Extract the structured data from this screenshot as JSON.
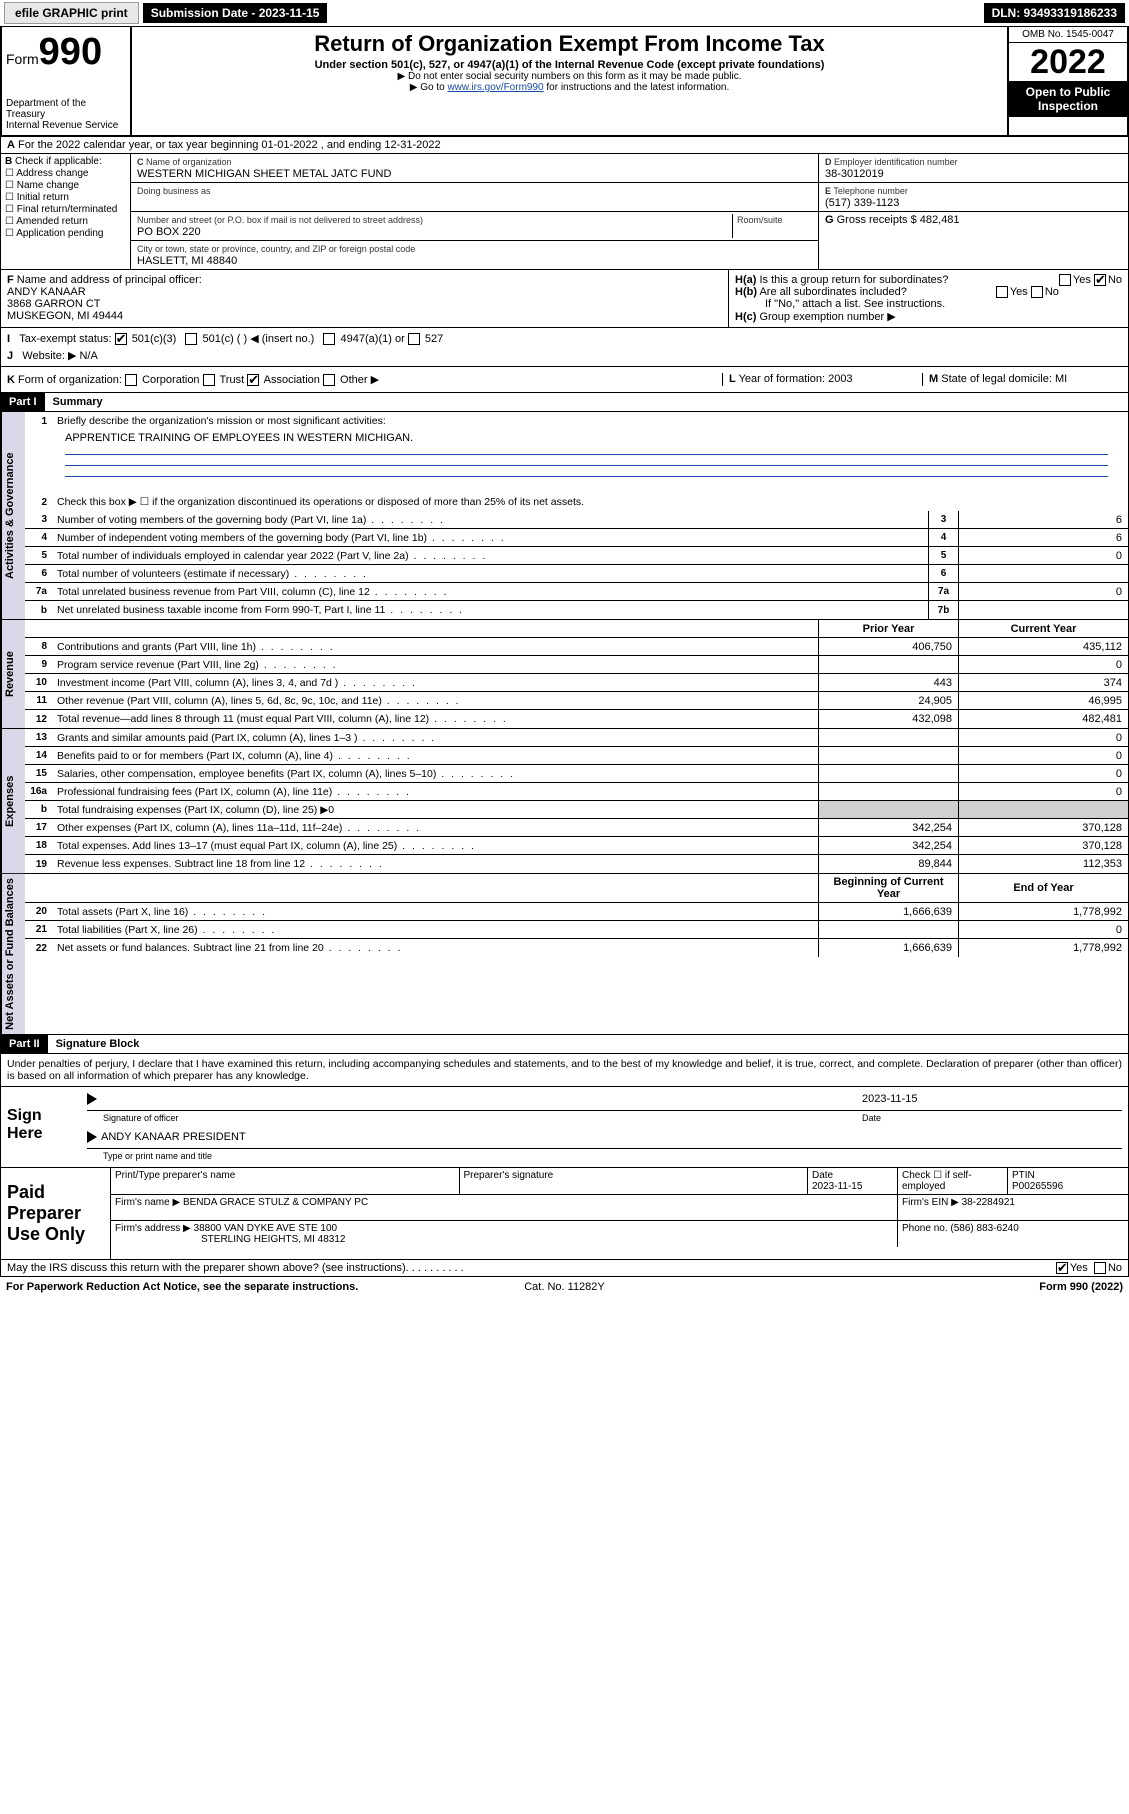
{
  "topbar": {
    "efile": "efile GRAPHIC print",
    "subdate_label": "Submission Date - 2023-11-15",
    "dln": "DLN: 93493319186233"
  },
  "header": {
    "form_label": "Form",
    "form_num": "990",
    "dept": "Department of the Treasury",
    "irs": "Internal Revenue Service",
    "title": "Return of Organization Exempt From Income Tax",
    "sub1": "Under section 501(c), 527, or 4947(a)(1) of the Internal Revenue Code (except private foundations)",
    "sub2": "▶ Do not enter social security numbers on this form as it may be made public.",
    "sub3": "▶ Go to www.irs.gov/Form990 for instructions and the latest information.",
    "omb": "OMB No. 1545-0047",
    "year": "2022",
    "open": "Open to Public Inspection"
  },
  "secA": "For the 2022 calendar year, or tax year beginning 01-01-2022   , and ending 12-31-2022",
  "boxB": {
    "label": "Check if applicable:",
    "opts": [
      "Address change",
      "Name change",
      "Initial return",
      "Final return/terminated",
      "Amended return",
      "Application pending"
    ]
  },
  "boxC": {
    "name_lbl": "Name of organization",
    "name": "WESTERN MICHIGAN SHEET METAL JATC FUND",
    "dba_lbl": "Doing business as",
    "dba": "",
    "addr_lbl": "Number and street (or P.O. box if mail is not delivered to street address)",
    "room_lbl": "Room/suite",
    "addr": "PO BOX 220",
    "city_lbl": "City or town, state or province, country, and ZIP or foreign postal code",
    "city": "HASLETT, MI  48840"
  },
  "boxD": {
    "lbl": "Employer identification number",
    "val": "38-3012019"
  },
  "boxE": {
    "lbl": "Telephone number",
    "val": "(517) 339-1123"
  },
  "boxG": {
    "lbl": "Gross receipts $",
    "val": "482,481"
  },
  "boxF": {
    "lbl": "Name and address of principal officer:",
    "name": "ANDY KANAAR",
    "addr": "3868 GARRON CT",
    "city": "MUSKEGON, MI  49444"
  },
  "boxH": {
    "a": "Is this a group return for subordinates?",
    "a_yes": "Yes",
    "a_no": "No",
    "b": "Are all subordinates included?",
    "b_note": "If \"No,\" attach a list. See instructions.",
    "c": "Group exemption number ▶"
  },
  "boxI": {
    "lbl": "Tax-exempt status:",
    "o1": "501(c)(3)",
    "o2": "501(c) (  ) ◀ (insert no.)",
    "o3": "4947(a)(1) or",
    "o4": "527"
  },
  "boxJ": {
    "lbl": "Website: ▶",
    "val": "N/A"
  },
  "boxK": {
    "lbl": "Form of organization:",
    "o1": "Corporation",
    "o2": "Trust",
    "o3": "Association",
    "o4": "Other ▶"
  },
  "boxL": {
    "lbl": "Year of formation:",
    "val": "2003"
  },
  "boxM": {
    "lbl": "State of legal domicile:",
    "val": "MI"
  },
  "part1": {
    "hdr": "Part I",
    "title": "Summary"
  },
  "summary": {
    "q1": "Briefly describe the organization's mission or most significant activities:",
    "q1a": "APPRENTICE TRAINING OF EMPLOYEES IN WESTERN MICHIGAN.",
    "q2": "Check this box ▶ ☐  if the organization discontinued its operations or disposed of more than 25% of its net assets.",
    "rows_gov": [
      {
        "n": "3",
        "d": "Number of voting members of the governing body (Part VI, line 1a)",
        "b": "3",
        "v": "6"
      },
      {
        "n": "4",
        "d": "Number of independent voting members of the governing body (Part VI, line 1b)",
        "b": "4",
        "v": "6"
      },
      {
        "n": "5",
        "d": "Total number of individuals employed in calendar year 2022 (Part V, line 2a)",
        "b": "5",
        "v": "0"
      },
      {
        "n": "6",
        "d": "Total number of volunteers (estimate if necessary)",
        "b": "6",
        "v": ""
      },
      {
        "n": "7a",
        "d": "Total unrelated business revenue from Part VIII, column (C), line 12",
        "b": "7a",
        "v": "0"
      },
      {
        "n": "b",
        "d": "Net unrelated business taxable income from Form 990-T, Part I, line 11",
        "b": "7b",
        "v": ""
      }
    ],
    "col_hdr": {
      "prior": "Prior Year",
      "curr": "Current Year"
    },
    "rows_rev": [
      {
        "n": "8",
        "d": "Contributions and grants (Part VIII, line 1h)",
        "p": "406,750",
        "c": "435,112"
      },
      {
        "n": "9",
        "d": "Program service revenue (Part VIII, line 2g)",
        "p": "",
        "c": "0"
      },
      {
        "n": "10",
        "d": "Investment income (Part VIII, column (A), lines 3, 4, and 7d )",
        "p": "443",
        "c": "374"
      },
      {
        "n": "11",
        "d": "Other revenue (Part VIII, column (A), lines 5, 6d, 8c, 9c, 10c, and 11e)",
        "p": "24,905",
        "c": "46,995"
      },
      {
        "n": "12",
        "d": "Total revenue—add lines 8 through 11 (must equal Part VIII, column (A), line 12)",
        "p": "432,098",
        "c": "482,481"
      }
    ],
    "rows_exp": [
      {
        "n": "13",
        "d": "Grants and similar amounts paid (Part IX, column (A), lines 1–3 )",
        "p": "",
        "c": "0"
      },
      {
        "n": "14",
        "d": "Benefits paid to or for members (Part IX, column (A), line 4)",
        "p": "",
        "c": "0"
      },
      {
        "n": "15",
        "d": "Salaries, other compensation, employee benefits (Part IX, column (A), lines 5–10)",
        "p": "",
        "c": "0"
      },
      {
        "n": "16a",
        "d": "Professional fundraising fees (Part IX, column (A), line 11e)",
        "p": "",
        "c": "0"
      },
      {
        "n": "b",
        "d": "Total fundraising expenses (Part IX, column (D), line 25) ▶0",
        "p": "—shade—",
        "c": "—shade—"
      },
      {
        "n": "17",
        "d": "Other expenses (Part IX, column (A), lines 11a–11d, 11f–24e)",
        "p": "342,254",
        "c": "370,128"
      },
      {
        "n": "18",
        "d": "Total expenses. Add lines 13–17 (must equal Part IX, column (A), line 25)",
        "p": "342,254",
        "c": "370,128"
      },
      {
        "n": "19",
        "d": "Revenue less expenses. Subtract line 18 from line 12",
        "p": "89,844",
        "c": "112,353"
      }
    ],
    "col_hdr2": {
      "beg": "Beginning of Current Year",
      "end": "End of Year"
    },
    "rows_net": [
      {
        "n": "20",
        "d": "Total assets (Part X, line 16)",
        "p": "1,666,639",
        "c": "1,778,992"
      },
      {
        "n": "21",
        "d": "Total liabilities (Part X, line 26)",
        "p": "",
        "c": "0"
      },
      {
        "n": "22",
        "d": "Net assets or fund balances. Subtract line 21 from line 20",
        "p": "1,666,639",
        "c": "1,778,992"
      }
    ],
    "tabs": {
      "gov": "Activities & Governance",
      "rev": "Revenue",
      "exp": "Expenses",
      "net": "Net Assets or Fund Balances"
    }
  },
  "part2": {
    "hdr": "Part II",
    "title": "Signature Block"
  },
  "sig": {
    "perjury": "Under penalties of perjury, I declare that I have examined this return, including accompanying schedules and statements, and to the best of my knowledge and belief, it is true, correct, and complete. Declaration of preparer (other than officer) is based on all information of which preparer has any knowledge.",
    "sign_here": "Sign Here",
    "sig_officer": "Signature of officer",
    "date_lbl": "Date",
    "date": "2023-11-15",
    "name": "ANDY KANAAR  PRESIDENT",
    "name_lbl": "Type or print name and title"
  },
  "prep": {
    "lbl": "Paid Preparer Use Only",
    "h1": "Print/Type preparer's name",
    "h2": "Preparer's signature",
    "h3": "Date",
    "h4": "Check ☐ if self-employed",
    "h5": "PTIN",
    "date": "2023-11-15",
    "ptin": "P00265596",
    "firm_lbl": "Firm's name  ▶",
    "firm": "BENDA GRACE STULZ & COMPANY PC",
    "ein_lbl": "Firm's EIN ▶",
    "ein": "38-2284921",
    "addr_lbl": "Firm's address ▶",
    "addr": "38800 VAN DYKE AVE STE 100",
    "addr2": "STERLING HEIGHTS, MI  48312",
    "phone_lbl": "Phone no.",
    "phone": "(586) 883-6240"
  },
  "footer": {
    "q": "May the IRS discuss this return with the preparer shown above? (see instructions)",
    "yes": "Yes",
    "no": "No",
    "paperwork": "For Paperwork Reduction Act Notice, see the separate instructions.",
    "cat": "Cat. No. 11282Y",
    "form": "Form 990 (2022)"
  }
}
